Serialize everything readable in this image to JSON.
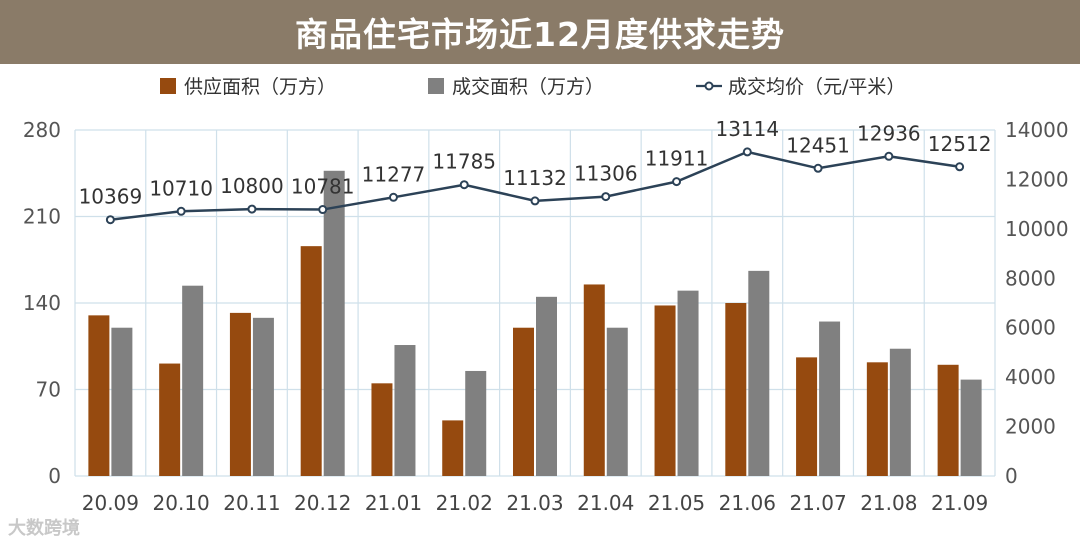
{
  "title": "商品住宅市场近12月度供求走势",
  "watermark": "大数跨境",
  "colors": {
    "title_bg": "#8a7b68",
    "supply": "#964a0f",
    "deal": "#808080",
    "line": "#2c4257",
    "grid": "#cfe0ea"
  },
  "chart_data": {
    "type": "bar",
    "categories": [
      "20.09",
      "20.10",
      "20.11",
      "20.12",
      "21.01",
      "21.02",
      "21.03",
      "21.04",
      "21.05",
      "21.06",
      "21.07",
      "21.08",
      "21.09"
    ],
    "series": [
      {
        "name": "供应面积（万方）",
        "type": "bar",
        "axis": "left",
        "values": [
          130,
          91,
          132,
          186,
          75,
          45,
          120,
          155,
          138,
          140,
          96,
          92,
          90
        ]
      },
      {
        "name": "成交面积（万方）",
        "type": "bar",
        "axis": "left",
        "values": [
          120,
          154,
          128,
          247,
          106,
          85,
          145,
          120,
          150,
          166,
          125,
          103,
          78
        ]
      },
      {
        "name": "成交均价（元/平米）",
        "type": "line",
        "axis": "right",
        "values": [
          10369,
          10710,
          10800,
          10781,
          11277,
          11785,
          11132,
          11306,
          11911,
          13114,
          12451,
          12936,
          12512
        ]
      }
    ],
    "y_left": {
      "ylim": [
        0,
        280
      ],
      "ticks": [
        "0",
        "70",
        "140",
        "210",
        "280"
      ]
    },
    "y_right": {
      "ylim": [
        0,
        14000
      ],
      "ticks": [
        "0",
        "2000",
        "4000",
        "6000",
        "8000",
        "10000",
        "12000",
        "14000"
      ]
    },
    "grid": true,
    "legend_position": "top"
  }
}
